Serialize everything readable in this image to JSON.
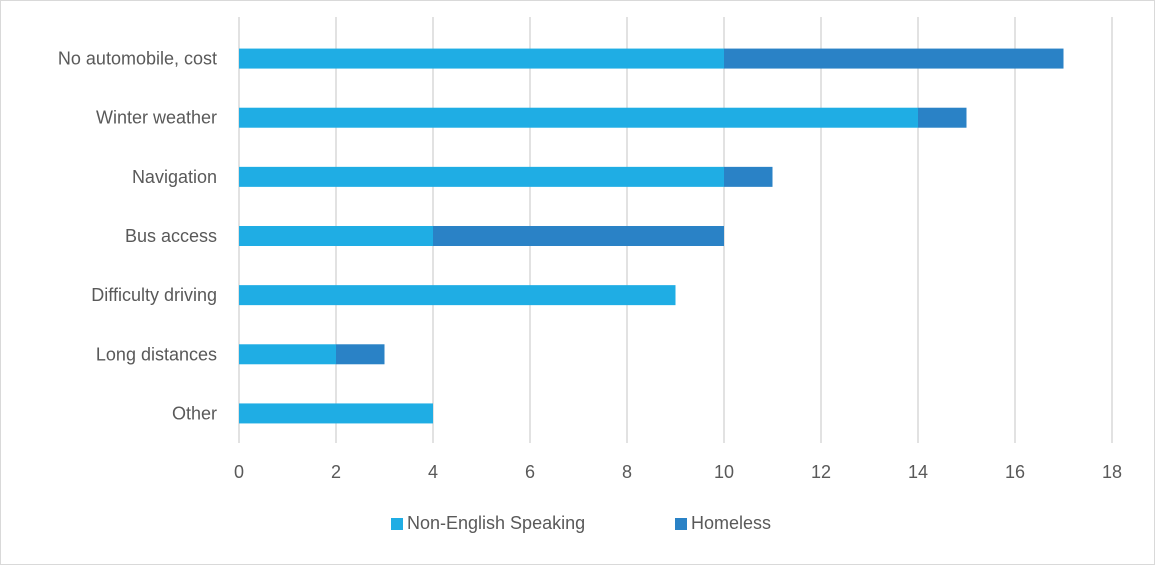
{
  "chart_data": {
    "type": "bar",
    "orientation": "horizontal",
    "stacked": true,
    "categories": [
      "No automobile, cost",
      "Winter weather",
      "Navigation",
      "Bus access",
      "Difficulty driving",
      "Long distances",
      "Other"
    ],
    "series": [
      {
        "name": "Non-English Speaking",
        "values": [
          10,
          14,
          10,
          4,
          9,
          2,
          4
        ],
        "color": "#1fade4"
      },
      {
        "name": "Homeless",
        "values": [
          7,
          1,
          1,
          6,
          0,
          1,
          0
        ],
        "color": "#2a82c6"
      }
    ],
    "xlim": [
      0,
      18
    ],
    "xticks": [
      "0",
      "2",
      "4",
      "6",
      "8",
      "10",
      "12",
      "14",
      "16",
      "18"
    ],
    "grid": "vertical",
    "legend_position": "bottom"
  }
}
